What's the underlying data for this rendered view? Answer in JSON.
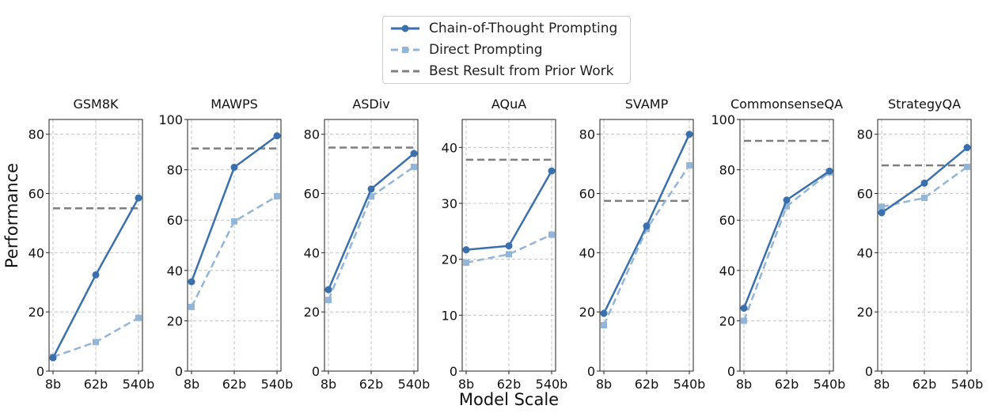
{
  "figure": {
    "ylabel": "Performance",
    "xlabel": "Model Scale",
    "legend": [
      {
        "key": "cot",
        "label": "Chain-of-Thought Prompting"
      },
      {
        "key": "direct",
        "label": "Direct Prompting"
      },
      {
        "key": "prior",
        "label": "Best Result from Prior Work"
      }
    ],
    "colors": {
      "cot": "#3a70ad",
      "direct": "#93b5d8",
      "prior": "#7f7f7f",
      "grid": "#b8b8b8"
    }
  },
  "chart_data": [
    {
      "type": "line",
      "title": "GSM8K",
      "categories": [
        "8b",
        "62b",
        "540b"
      ],
      "ylim": [
        0,
        85
      ],
      "yticks": [
        0,
        20,
        40,
        60,
        80
      ],
      "series": [
        {
          "name": "Chain-of-Thought Prompting",
          "values": [
            4.5,
            32.5,
            58.5
          ]
        },
        {
          "name": "Direct Prompting",
          "values": [
            4.8,
            9.8,
            18.0
          ]
        }
      ],
      "prior_best": 55.0,
      "grid": true
    },
    {
      "type": "line",
      "title": "MAWPS",
      "categories": [
        "8b",
        "62b",
        "540b"
      ],
      "ylim": [
        0,
        100
      ],
      "yticks": [
        0,
        20,
        40,
        60,
        80,
        100
      ],
      "series": [
        {
          "name": "Chain-of-Thought Prompting",
          "values": [
            35.5,
            81.0,
            93.5
          ]
        },
        {
          "name": "Direct Prompting",
          "values": [
            25.5,
            59.5,
            69.5
          ]
        }
      ],
      "prior_best": 88.5,
      "grid": true
    },
    {
      "type": "line",
      "title": "ASDiv",
      "categories": [
        "8b",
        "62b",
        "540b"
      ],
      "ylim": [
        0,
        85
      ],
      "yticks": [
        0,
        20,
        40,
        60,
        80
      ],
      "series": [
        {
          "name": "Chain-of-Thought Prompting",
          "values": [
            27.5,
            61.5,
            73.5
          ]
        },
        {
          "name": "Direct Prompting",
          "values": [
            24.0,
            59.0,
            69.0
          ]
        }
      ],
      "prior_best": 75.5,
      "grid": true
    },
    {
      "type": "line",
      "title": "AQuA",
      "categories": [
        "8b",
        "62b",
        "540b"
      ],
      "ylim": [
        0,
        45
      ],
      "yticks": [
        0,
        10,
        20,
        30,
        40
      ],
      "series": [
        {
          "name": "Chain-of-Thought Prompting",
          "values": [
            21.7,
            22.4,
            35.8
          ]
        },
        {
          "name": "Direct Prompting",
          "values": [
            19.4,
            20.9,
            24.4
          ]
        }
      ],
      "prior_best": 37.8,
      "grid": true
    },
    {
      "type": "line",
      "title": "SVAMP",
      "categories": [
        "8b",
        "62b",
        "540b"
      ],
      "ylim": [
        0,
        85
      ],
      "yticks": [
        0,
        20,
        40,
        60,
        80
      ],
      "series": [
        {
          "name": "Chain-of-Thought Prompting",
          "values": [
            19.5,
            49.0,
            80.0
          ]
        },
        {
          "name": "Direct Prompting",
          "values": [
            15.5,
            48.0,
            69.5
          ]
        }
      ],
      "prior_best": 57.5,
      "grid": true
    },
    {
      "type": "line",
      "title": "CommonsenseQA",
      "categories": [
        "8b",
        "62b",
        "540b"
      ],
      "ylim": [
        0,
        100
      ],
      "yticks": [
        0,
        20,
        40,
        60,
        80,
        100
      ],
      "series": [
        {
          "name": "Chain-of-Thought Prompting",
          "values": [
            25.0,
            68.0,
            79.5
          ]
        },
        {
          "name": "Direct Prompting",
          "values": [
            20.0,
            65.5,
            79.0
          ]
        }
      ],
      "prior_best": 91.5,
      "grid": true
    },
    {
      "type": "line",
      "title": "StrategyQA",
      "categories": [
        "8b",
        "62b",
        "540b"
      ],
      "ylim": [
        0,
        85
      ],
      "yticks": [
        0,
        20,
        40,
        60,
        80
      ],
      "series": [
        {
          "name": "Chain-of-Thought Prompting",
          "values": [
            53.5,
            63.5,
            75.5
          ]
        },
        {
          "name": "Direct Prompting",
          "values": [
            55.5,
            58.5,
            69.0
          ]
        }
      ],
      "prior_best": 69.5,
      "grid": true
    }
  ]
}
